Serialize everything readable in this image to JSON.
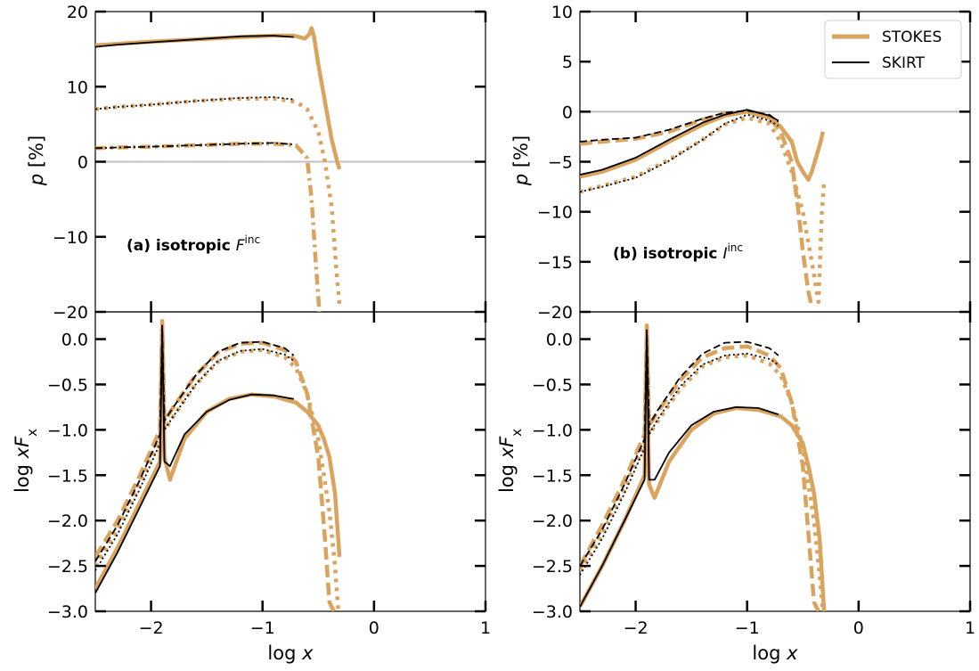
{
  "chart_data": [
    {
      "id": "p_Finc",
      "type": "line",
      "annotation": "(a) isotropic F^inc",
      "annotation_main": "(a) isotropic ",
      "annotation_var": "F",
      "annotation_sup": "inc",
      "ylabel_var": "p",
      "ylabel_unit": " [%]",
      "xlim": [
        -2.5,
        1
      ],
      "ylim": [
        -20,
        20
      ],
      "yticks": [
        -20,
        -10,
        0,
        10,
        20
      ],
      "xticks": [
        -2,
        -1,
        0,
        1
      ],
      "hline": 0,
      "series": [
        {
          "model": "STOKES",
          "style": "solid",
          "x": [
            -2.5,
            -2.3,
            -2.0,
            -1.6,
            -1.2,
            -0.9,
            -0.72,
            -0.62,
            -0.58,
            -0.56,
            -0.54,
            -0.5,
            -0.44,
            -0.38,
            -0.33,
            -0.31
          ],
          "y": [
            15.5,
            15.7,
            16.0,
            16.3,
            16.6,
            16.8,
            16.8,
            16.4,
            17.0,
            17.8,
            16.8,
            13.0,
            8.0,
            3.0,
            0.0,
            -1.0
          ]
        },
        {
          "model": "SKIRT",
          "style": "solid",
          "x": [
            -2.5,
            -2.3,
            -2.0,
            -1.6,
            -1.2,
            -0.9,
            -0.72
          ],
          "y": [
            15.3,
            15.6,
            15.9,
            16.3,
            16.7,
            16.8,
            16.6
          ]
        },
        {
          "model": "STOKES",
          "style": "dotted",
          "x": [
            -2.5,
            -2.3,
            -2.0,
            -1.6,
            -1.2,
            -0.9,
            -0.7,
            -0.6,
            -0.5,
            -0.44,
            -0.38,
            -0.34,
            -0.31
          ],
          "y": [
            7.0,
            7.3,
            7.6,
            8.1,
            8.4,
            8.4,
            8.0,
            7.0,
            4.0,
            0.0,
            -6.0,
            -14.0,
            -19.0
          ]
        },
        {
          "model": "SKIRT",
          "style": "dotted",
          "x": [
            -2.5,
            -2.3,
            -2.0,
            -1.6,
            -1.2,
            -0.9,
            -0.72
          ],
          "y": [
            7.0,
            7.3,
            7.6,
            8.1,
            8.5,
            8.6,
            8.3
          ]
        },
        {
          "model": "STOKES",
          "style": "dashdot",
          "x": [
            -2.5,
            -2.3,
            -2.0,
            -1.6,
            -1.2,
            -0.9,
            -0.7,
            -0.6,
            -0.56,
            -0.52,
            -0.49
          ],
          "y": [
            1.8,
            1.9,
            2.0,
            2.2,
            2.4,
            2.4,
            2.2,
            0.5,
            -5.0,
            -14.0,
            -20.0
          ]
        },
        {
          "model": "SKIRT",
          "style": "dashdot",
          "x": [
            -2.5,
            -2.3,
            -2.0,
            -1.6,
            -1.2,
            -0.9,
            -0.72
          ],
          "y": [
            1.8,
            1.9,
            2.0,
            2.2,
            2.4,
            2.5,
            2.3
          ]
        }
      ]
    },
    {
      "id": "p_Iinc",
      "type": "line",
      "annotation": "(b) isotropic I^inc",
      "annotation_main": "(b) isotropic ",
      "annotation_var": "I",
      "annotation_sup": "inc",
      "ylabel_var": "p",
      "ylabel_unit": " [%]",
      "xlim": [
        -2.5,
        1
      ],
      "ylim": [
        -20,
        10
      ],
      "yticks": [
        -20,
        -15,
        -10,
        -5,
        0,
        5,
        10
      ],
      "xticks": [
        -2,
        -1,
        0,
        1
      ],
      "hline": 0,
      "legend": {
        "position": "top-right",
        "entries": [
          "STOKES",
          "SKIRT"
        ]
      },
      "series": [
        {
          "model": "STOKES",
          "style": "dashed",
          "x": [
            -2.5,
            -2.3,
            -2.0,
            -1.7,
            -1.4,
            -1.2,
            -1.0,
            -0.8,
            -0.7,
            -0.6,
            -0.55,
            -0.5,
            -0.45,
            -0.42
          ],
          "y": [
            -3.2,
            -3.0,
            -2.7,
            -2.0,
            -0.8,
            -0.2,
            0.0,
            -0.6,
            -2.0,
            -5.0,
            -9.0,
            -14.0,
            -18.0,
            -19.5
          ]
        },
        {
          "model": "SKIRT",
          "style": "dashed",
          "x": [
            -2.5,
            -2.3,
            -2.0,
            -1.7,
            -1.4,
            -1.2,
            -1.0,
            -0.8,
            -0.72
          ],
          "y": [
            -3.0,
            -2.8,
            -2.6,
            -1.8,
            -0.7,
            -0.1,
            0.1,
            -0.3,
            -1.0
          ]
        },
        {
          "model": "STOKES",
          "style": "solid",
          "x": [
            -2.5,
            -2.3,
            -2.0,
            -1.7,
            -1.4,
            -1.2,
            -1.0,
            -0.8,
            -0.7,
            -0.6,
            -0.55,
            -0.5,
            -0.45,
            -0.42,
            -0.38,
            -0.34,
            -0.32
          ],
          "y": [
            -6.5,
            -6.0,
            -4.8,
            -3.0,
            -1.3,
            -0.4,
            0.0,
            -0.6,
            -1.5,
            -3.0,
            -5.0,
            -6.0,
            -6.8,
            -6.0,
            -4.5,
            -3.0,
            -2.0
          ]
        },
        {
          "model": "SKIRT",
          "style": "solid",
          "x": [
            -2.5,
            -2.3,
            -2.0,
            -1.7,
            -1.4,
            -1.2,
            -1.0,
            -0.8,
            -0.72
          ],
          "y": [
            -6.3,
            -5.8,
            -4.6,
            -2.8,
            -1.1,
            -0.3,
            0.2,
            -0.4,
            -0.9
          ]
        },
        {
          "model": "STOKES",
          "style": "dotted",
          "x": [
            -2.5,
            -2.3,
            -2.0,
            -1.7,
            -1.4,
            -1.2,
            -1.0,
            -0.8,
            -0.7,
            -0.6,
            -0.5,
            -0.42,
            -0.36,
            -0.33,
            -0.31
          ],
          "y": [
            -8.0,
            -7.4,
            -6.5,
            -4.8,
            -2.8,
            -1.3,
            -0.6,
            -1.2,
            -3.0,
            -6.0,
            -10.0,
            -15.0,
            -19.0,
            -10.0,
            -7.0
          ]
        },
        {
          "model": "SKIRT",
          "style": "dotted",
          "x": [
            -2.5,
            -2.3,
            -2.0,
            -1.7,
            -1.4,
            -1.2,
            -1.0,
            -0.8,
            -0.72
          ],
          "y": [
            -8.0,
            -7.5,
            -6.6,
            -4.9,
            -2.8,
            -1.2,
            -0.3,
            -0.9,
            -1.4
          ]
        }
      ]
    },
    {
      "id": "flux_Finc",
      "type": "line",
      "xlabel_pre": "log ",
      "xlabel_var": "x",
      "ylabel_pre": "log ",
      "ylabel_var": "xF",
      "ylabel_sub": "x",
      "xlim": [
        -2.5,
        1
      ],
      "ylim": [
        -3.0,
        0.3
      ],
      "yticks": [
        -3.0,
        -2.5,
        -2.0,
        -1.5,
        -1.0,
        -0.5,
        0.0
      ],
      "ytick_labels": [
        "−3.0",
        "−2.5",
        "−2.0",
        "−1.5",
        "−1.0",
        "−0.5",
        "0.0"
      ],
      "xticks": [
        -2,
        -1,
        0,
        1
      ],
      "xtick_labels": [
        "−2",
        "−1",
        "0",
        "1"
      ],
      "series": [
        {
          "model": "STOKES",
          "style": "solid",
          "x": [
            -2.5,
            -2.3,
            -2.1,
            -1.92,
            -1.9,
            -1.88,
            -1.83,
            -1.7,
            -1.5,
            -1.3,
            -1.1,
            -0.9,
            -0.7,
            -0.6,
            -0.5,
            -0.45,
            -0.4,
            -0.35,
            -0.31
          ],
          "y": [
            -2.75,
            -2.3,
            -1.8,
            -1.35,
            0.15,
            -1.3,
            -1.55,
            -1.1,
            -0.8,
            -0.66,
            -0.61,
            -0.63,
            -0.7,
            -0.8,
            -0.95,
            -1.1,
            -1.3,
            -1.7,
            -2.4
          ]
        },
        {
          "model": "SKIRT",
          "style": "solid",
          "x": [
            -2.5,
            -2.3,
            -2.1,
            -1.92,
            -1.9,
            -1.88,
            -1.83,
            -1.7,
            -1.5,
            -1.3,
            -1.1,
            -0.9,
            -0.72
          ],
          "y": [
            -2.8,
            -2.35,
            -1.85,
            -1.4,
            0.1,
            -1.35,
            -1.4,
            -1.05,
            -0.8,
            -0.67,
            -0.61,
            -0.62,
            -0.66
          ]
        },
        {
          "model": "STOKES",
          "style": "dashed",
          "x": [
            -2.5,
            -2.3,
            -2.1,
            -1.92,
            -1.9,
            -1.88,
            -1.8,
            -1.6,
            -1.4,
            -1.2,
            -1.0,
            -0.8,
            -0.7,
            -0.6,
            -0.5,
            -0.44,
            -0.4,
            -0.36
          ],
          "y": [
            -2.4,
            -2.0,
            -1.5,
            -1.0,
            0.2,
            -0.9,
            -0.75,
            -0.4,
            -0.15,
            -0.05,
            -0.04,
            -0.12,
            -0.25,
            -0.6,
            -1.3,
            -2.2,
            -2.9,
            -3.0
          ]
        },
        {
          "model": "SKIRT",
          "style": "dashed",
          "x": [
            -2.5,
            -2.3,
            -2.1,
            -1.92,
            -1.9,
            -1.88,
            -1.8,
            -1.6,
            -1.4,
            -1.2,
            -1.0,
            -0.8,
            -0.72
          ],
          "y": [
            -2.45,
            -2.05,
            -1.55,
            -1.05,
            0.15,
            -0.9,
            -0.75,
            -0.4,
            -0.14,
            -0.04,
            -0.03,
            -0.1,
            -0.18
          ]
        },
        {
          "model": "STOKES",
          "style": "dotted",
          "x": [
            -2.5,
            -2.3,
            -2.1,
            -1.92,
            -1.9,
            -1.88,
            -1.8,
            -1.6,
            -1.4,
            -1.2,
            -1.0,
            -0.8,
            -0.7,
            -0.6,
            -0.5,
            -0.4,
            -0.35,
            -0.32
          ],
          "y": [
            -2.5,
            -2.1,
            -1.6,
            -1.1,
            0.1,
            -1.0,
            -0.85,
            -0.5,
            -0.25,
            -0.14,
            -0.12,
            -0.2,
            -0.32,
            -0.6,
            -1.1,
            -1.9,
            -2.5,
            -3.0
          ]
        },
        {
          "model": "SKIRT",
          "style": "dotted",
          "x": [
            -2.5,
            -2.3,
            -2.1,
            -1.92,
            -1.9,
            -1.88,
            -1.8,
            -1.6,
            -1.4,
            -1.2,
            -1.0,
            -0.8,
            -0.72
          ],
          "y": [
            -2.55,
            -2.15,
            -1.65,
            -1.15,
            0.05,
            -1.0,
            -0.85,
            -0.5,
            -0.24,
            -0.13,
            -0.11,
            -0.17,
            -0.24
          ]
        }
      ]
    },
    {
      "id": "flux_Iinc",
      "type": "line",
      "xlabel_pre": "log ",
      "xlabel_var": "x",
      "ylabel_pre": "log ",
      "ylabel_var": "xF",
      "ylabel_sub": "x",
      "xlim": [
        -2.5,
        1
      ],
      "ylim": [
        -3.0,
        0.3
      ],
      "yticks": [
        -3.0,
        -2.5,
        -2.0,
        -1.5,
        -1.0,
        -0.5,
        0.0
      ],
      "ytick_labels": [
        "−3.0",
        "−2.5",
        "−2.0",
        "−1.5",
        "−1.0",
        "−0.5",
        "0.0"
      ],
      "xticks": [
        -2,
        -1,
        0,
        1
      ],
      "xtick_labels": [
        "−2",
        "−1",
        "0",
        "1"
      ],
      "series": [
        {
          "model": "STOKES",
          "style": "solid",
          "x": [
            -2.5,
            -2.3,
            -2.1,
            -1.92,
            -1.9,
            -1.88,
            -1.83,
            -1.7,
            -1.5,
            -1.3,
            -1.1,
            -0.9,
            -0.7,
            -0.6,
            -0.5,
            -0.45,
            -0.4,
            -0.35,
            -0.31
          ],
          "y": [
            -2.95,
            -2.5,
            -2.0,
            -1.5,
            0.1,
            -1.6,
            -1.75,
            -1.35,
            -1.0,
            -0.82,
            -0.76,
            -0.78,
            -0.85,
            -0.95,
            -1.15,
            -1.4,
            -1.7,
            -2.2,
            -3.0
          ]
        },
        {
          "model": "SKIRT",
          "style": "solid",
          "x": [
            -2.5,
            -2.3,
            -2.1,
            -1.92,
            -1.9,
            -1.88,
            -1.83,
            -1.7,
            -1.5,
            -1.3,
            -1.1,
            -0.9,
            -0.72
          ],
          "y": [
            -2.95,
            -2.5,
            -2.0,
            -1.55,
            0.05,
            -1.55,
            -1.55,
            -1.25,
            -0.95,
            -0.8,
            -0.75,
            -0.76,
            -0.83
          ]
        },
        {
          "model": "STOKES",
          "style": "dashed",
          "x": [
            -2.5,
            -2.3,
            -2.1,
            -1.92,
            -1.9,
            -1.88,
            -1.8,
            -1.6,
            -1.4,
            -1.2,
            -1.0,
            -0.8,
            -0.7,
            -0.6,
            -0.5,
            -0.44,
            -0.4,
            -0.36
          ],
          "y": [
            -2.5,
            -2.05,
            -1.55,
            -1.05,
            0.15,
            -0.95,
            -0.8,
            -0.45,
            -0.2,
            -0.1,
            -0.08,
            -0.18,
            -0.32,
            -0.7,
            -1.4,
            -2.3,
            -2.9,
            -3.0
          ]
        },
        {
          "model": "SKIRT",
          "style": "dashed",
          "x": [
            -2.5,
            -2.3,
            -2.1,
            -1.92,
            -1.9,
            -1.88,
            -1.8,
            -1.6,
            -1.4,
            -1.2,
            -1.0,
            -0.8,
            -0.72
          ],
          "y": [
            -2.5,
            -2.1,
            -1.6,
            -1.1,
            0.1,
            -0.95,
            -0.78,
            -0.42,
            -0.16,
            -0.04,
            -0.03,
            -0.1,
            -0.18
          ]
        },
        {
          "model": "STOKES",
          "style": "dotted",
          "x": [
            -2.5,
            -2.3,
            -2.1,
            -1.92,
            -1.9,
            -1.88,
            -1.8,
            -1.6,
            -1.4,
            -1.2,
            -1.0,
            -0.8,
            -0.7,
            -0.6,
            -0.5,
            -0.4,
            -0.35,
            -0.32
          ],
          "y": [
            -2.55,
            -2.15,
            -1.65,
            -1.15,
            0.05,
            -1.05,
            -0.9,
            -0.55,
            -0.3,
            -0.2,
            -0.18,
            -0.27,
            -0.4,
            -0.7,
            -1.2,
            -2.0,
            -2.6,
            -3.0
          ]
        },
        {
          "model": "SKIRT",
          "style": "dotted",
          "x": [
            -2.5,
            -2.3,
            -2.1,
            -1.92,
            -1.9,
            -1.88,
            -1.8,
            -1.6,
            -1.4,
            -1.2,
            -1.0,
            -0.8,
            -0.72
          ],
          "y": [
            -2.6,
            -2.2,
            -1.7,
            -1.2,
            0.0,
            -1.05,
            -0.88,
            -0.52,
            -0.28,
            -0.18,
            -0.16,
            -0.22,
            -0.28
          ]
        }
      ]
    }
  ],
  "axes_text": {
    "ylabel_p_var": "p",
    "ylabel_p_unit": " [%]",
    "xlabel_pre": "log ",
    "xlabel_var": "x",
    "ylabel_flux_pre": "log ",
    "ylabel_flux_var": "xF",
    "ylabel_flux_sub": "x",
    "p_left_ticks": [
      "20",
      "10",
      "0",
      "−10",
      "−20"
    ],
    "p_right_ticks": [
      "10",
      "5",
      "0",
      "−5",
      "−10",
      "−15",
      "−20"
    ],
    "annot_a_main": "(a) isotropic ",
    "annot_a_var": "F",
    "annot_a_sup": "inc",
    "annot_b_main": "(b) isotropic ",
    "annot_b_var": "I",
    "annot_b_sup": "inc"
  },
  "legend": {
    "stokes": "STOKES",
    "skirt": "SKIRT"
  },
  "colors": {
    "stokes": "#daa35e",
    "skirt": "#000000",
    "zero_line": "#c0c0c0"
  }
}
